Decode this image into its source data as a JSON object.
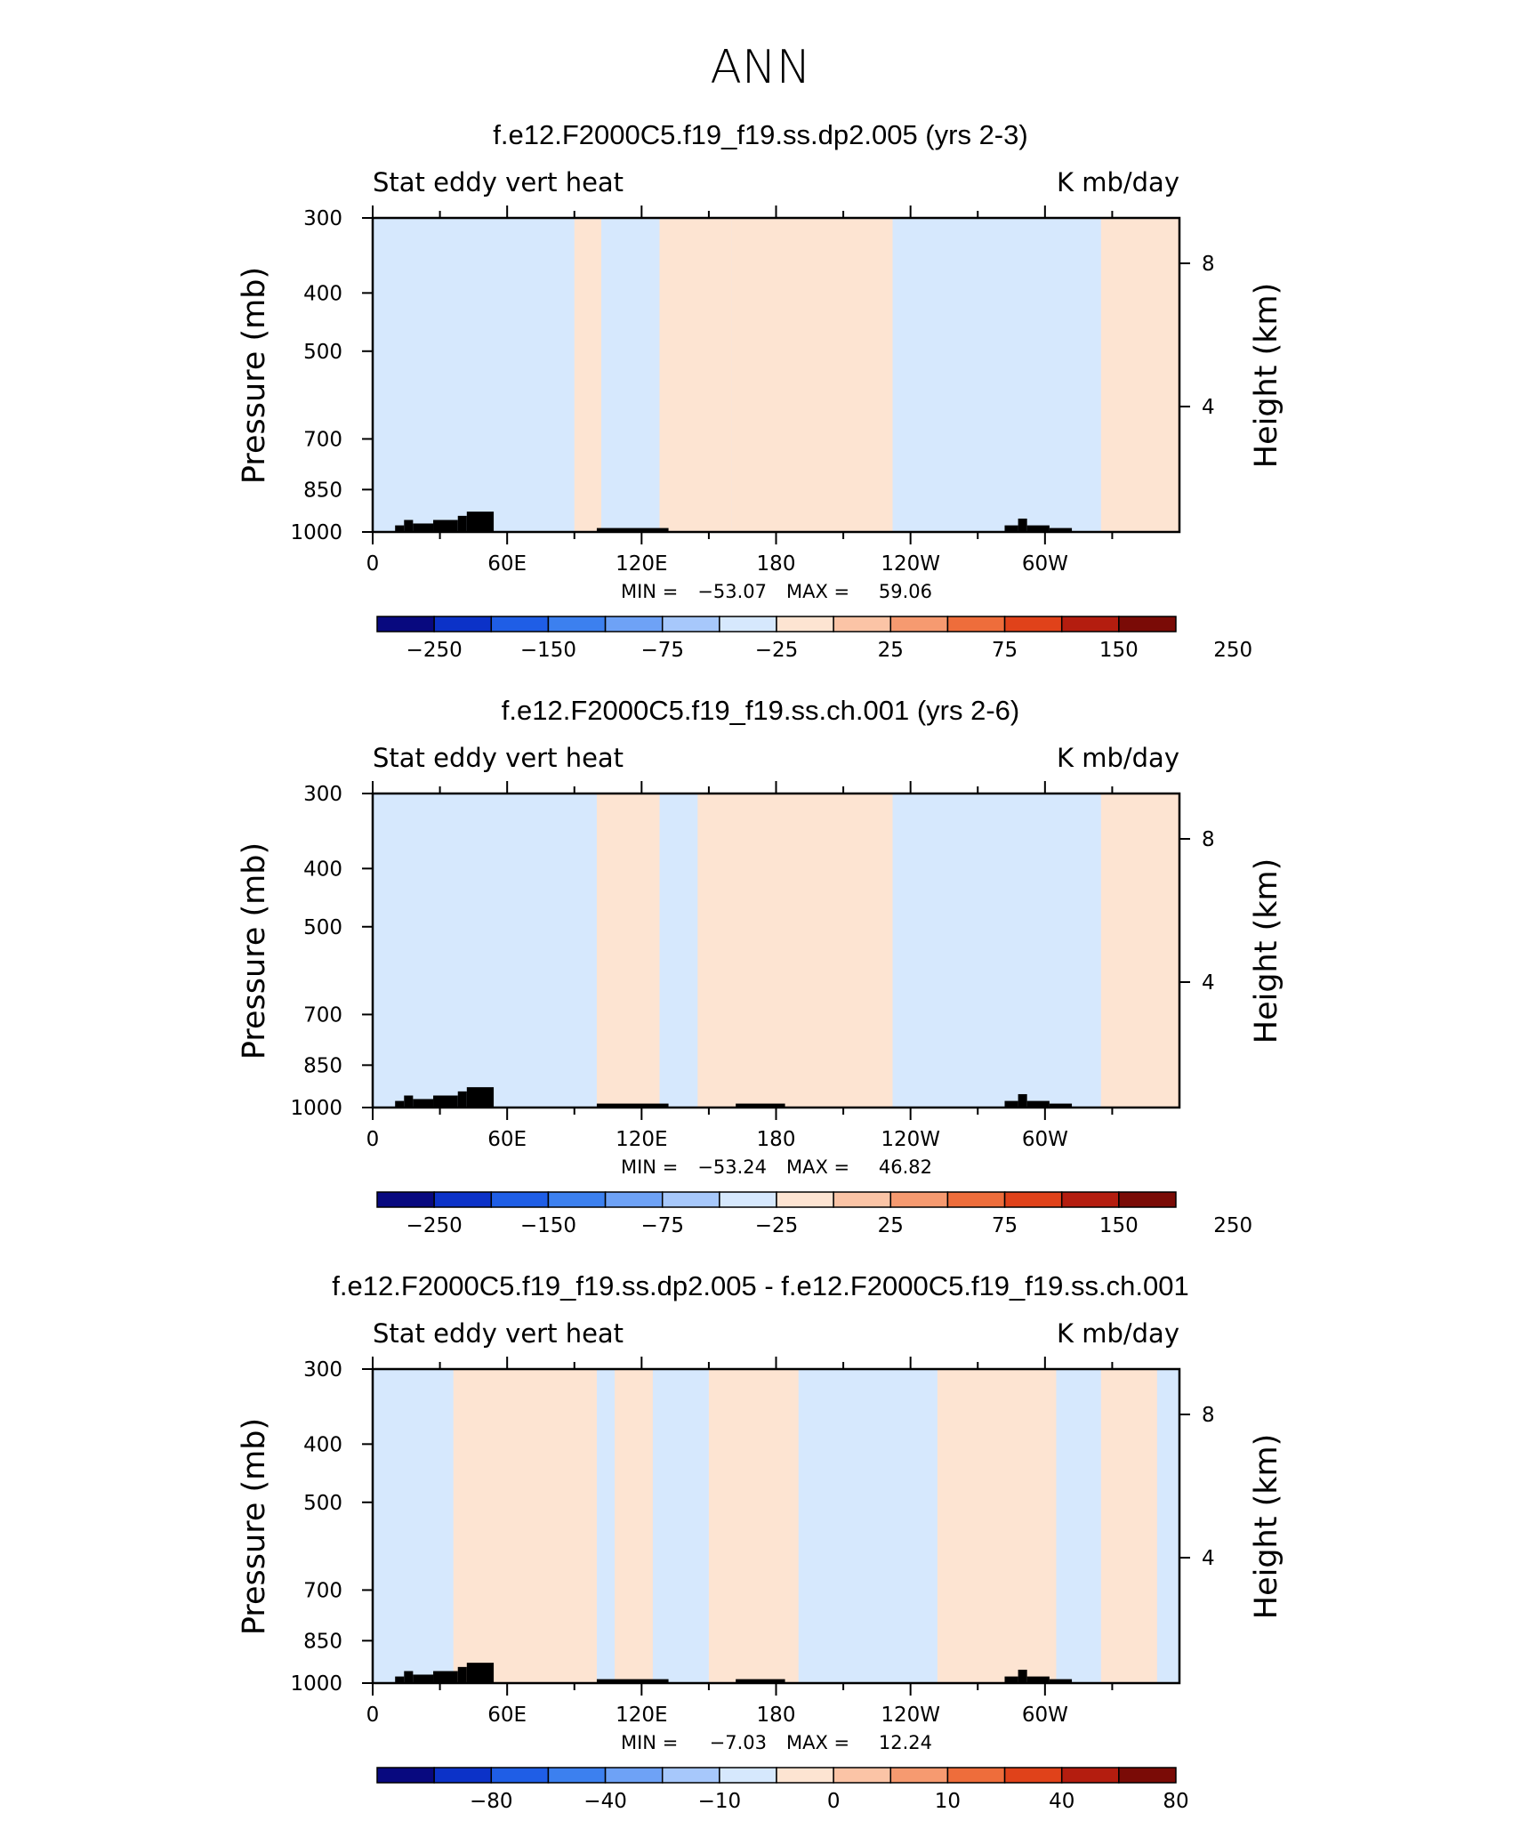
{
  "page_title": "ANN",
  "colors": {
    "land": "#000000",
    "neg1": "#d6e8fd",
    "pos1": "#fde4d2",
    "colorbar": [
      "#08097f",
      "#0c32c8",
      "#1f5ee6",
      "#3c80ef",
      "#6ea2f6",
      "#a7c8fb",
      "#d6e8fd",
      "#fde4d2",
      "#fbc4a6",
      "#f69a70",
      "#ee6d3b",
      "#e0421a",
      "#b41d0f",
      "#7a0b06"
    ]
  },
  "panels": [
    {
      "title": "f.e12.F2000C5.f19_f19.ss.dp2.005 (yrs 2-3)",
      "left_label": "Stat eddy vert heat",
      "right_label": "K mb/day",
      "y_label": "Pressure (mb)",
      "y2_label": "Height (km)",
      "stats": {
        "min_label": "MIN =",
        "min": "−53.07",
        "max_label": "MAX =",
        "max": "59.06"
      },
      "colorbar_labels": [
        "−250",
        "−150",
        "−75",
        "−25",
        "25",
        "75",
        "150",
        "250"
      ]
    },
    {
      "title": "f.e12.F2000C5.f19_f19.ss.ch.001 (yrs 2-6)",
      "left_label": "Stat eddy vert heat",
      "right_label": "K mb/day",
      "y_label": "Pressure (mb)",
      "y2_label": "Height (km)",
      "stats": {
        "min_label": "MIN =",
        "min": "−53.24",
        "max_label": "MAX =",
        "max": "46.82"
      },
      "colorbar_labels": [
        "−250",
        "−150",
        "−75",
        "−25",
        "25",
        "75",
        "150",
        "250"
      ]
    },
    {
      "title": "f.e12.F2000C5.f19_f19.ss.dp2.005 - f.e12.F2000C5.f19_f19.ss.ch.001",
      "left_label": "Stat eddy vert heat",
      "right_label": "K mb/day",
      "y_label": "Pressure (mb)",
      "y2_label": "Height (km)",
      "stats": {
        "min_label": "MIN =",
        "min": "−7.03",
        "max_label": "MAX =",
        "max": "12.24"
      },
      "colorbar_labels": [
        "−80",
        "−40",
        "−10",
        "0",
        "10",
        "40",
        "80"
      ]
    }
  ],
  "chart_data": [
    {
      "type": "heatmap",
      "title": "f.e12.F2000C5.f19_f19.ss.dp2.005 (yrs 2-3)",
      "xlabel": "",
      "ylabel": "Pressure (mb)",
      "y2label": "Height (km)",
      "x_ticks": [
        "0",
        "60E",
        "120E",
        "180",
        "120W",
        "60W"
      ],
      "x_tick_values": [
        0,
        60,
        120,
        180,
        240,
        300
      ],
      "xlim": [
        0,
        360
      ],
      "y_ticks": [
        300,
        400,
        500,
        700,
        850,
        1000
      ],
      "ylim": [
        1000,
        300
      ],
      "y_scale": "log",
      "y2_ticks": [
        8,
        4
      ],
      "colorbar_levels": [
        -250,
        -200,
        -150,
        -100,
        -75,
        -50,
        -25,
        0,
        25,
        50,
        75,
        100,
        150,
        200,
        250
      ],
      "colorbar_labels": [
        "−250",
        "−150",
        "−75",
        "−25",
        "25",
        "75",
        "150",
        "250"
      ],
      "min": -53.07,
      "max": 59.06,
      "sign_pattern": [
        [
          0,
          12,
          "neg"
        ],
        [
          12,
          25,
          "neg"
        ],
        [
          25,
          48,
          "neg"
        ],
        [
          48,
          55,
          "neg"
        ],
        [
          55,
          90,
          "neg"
        ],
        [
          90,
          102,
          "pos"
        ],
        [
          102,
          128,
          "neg"
        ],
        [
          128,
          160,
          "pos"
        ],
        [
          160,
          232,
          "pos"
        ],
        [
          232,
          280,
          "neg"
        ],
        [
          280,
          325,
          "neg"
        ],
        [
          325,
          360,
          "pos"
        ]
      ]
    },
    {
      "type": "heatmap",
      "title": "f.e12.F2000C5.f19_f19.ss.ch.001 (yrs 2-6)",
      "xlabel": "",
      "ylabel": "Pressure (mb)",
      "y2label": "Height (km)",
      "x_ticks": [
        "0",
        "60E",
        "120E",
        "180",
        "120W",
        "60W"
      ],
      "x_tick_values": [
        0,
        60,
        120,
        180,
        240,
        300
      ],
      "xlim": [
        0,
        360
      ],
      "y_ticks": [
        300,
        400,
        500,
        700,
        850,
        1000
      ],
      "ylim": [
        1000,
        300
      ],
      "y_scale": "log",
      "y2_ticks": [
        8,
        4
      ],
      "colorbar_levels": [
        -250,
        -200,
        -150,
        -100,
        -75,
        -50,
        -25,
        0,
        25,
        50,
        75,
        100,
        150,
        200,
        250
      ],
      "colorbar_labels": [
        "−250",
        "−150",
        "−75",
        "−25",
        "25",
        "75",
        "150",
        "250"
      ],
      "min": -53.24,
      "max": 46.82,
      "sign_pattern": [
        [
          0,
          12,
          "neg"
        ],
        [
          12,
          48,
          "neg"
        ],
        [
          48,
          55,
          "neg"
        ],
        [
          55,
          100,
          "neg"
        ],
        [
          100,
          128,
          "pos"
        ],
        [
          128,
          145,
          "neg"
        ],
        [
          145,
          232,
          "pos"
        ],
        [
          232,
          280,
          "neg"
        ],
        [
          280,
          325,
          "neg"
        ],
        [
          325,
          360,
          "pos"
        ]
      ]
    },
    {
      "type": "heatmap",
      "title": "f.e12.F2000C5.f19_f19.ss.dp2.005 - f.e12.F2000C5.f19_f19.ss.ch.001",
      "xlabel": "",
      "ylabel": "Pressure (mb)",
      "y2label": "Height (km)",
      "x_ticks": [
        "0",
        "60E",
        "120E",
        "180",
        "120W",
        "60W"
      ],
      "x_tick_values": [
        0,
        60,
        120,
        180,
        240,
        300
      ],
      "xlim": [
        0,
        360
      ],
      "y_ticks": [
        300,
        400,
        500,
        700,
        850,
        1000
      ],
      "ylim": [
        1000,
        300
      ],
      "y_scale": "log",
      "y2_ticks": [
        8,
        4
      ],
      "colorbar_levels": [
        -100,
        -80,
        -60,
        -40,
        -20,
        -10,
        -5,
        0,
        5,
        10,
        20,
        40,
        60,
        80,
        100
      ],
      "colorbar_labels": [
        "−80",
        "−40",
        "−10",
        "0",
        "10",
        "40",
        "80"
      ],
      "min": -7.03,
      "max": 12.24,
      "sign_pattern": [
        [
          0,
          36,
          "neg"
        ],
        [
          36,
          100,
          "pos"
        ],
        [
          100,
          108,
          "neg"
        ],
        [
          108,
          125,
          "pos"
        ],
        [
          125,
          150,
          "neg"
        ],
        [
          150,
          190,
          "pos"
        ],
        [
          190,
          252,
          "neg"
        ],
        [
          252,
          305,
          "pos"
        ],
        [
          305,
          325,
          "neg"
        ],
        [
          325,
          350,
          "pos"
        ],
        [
          350,
          360,
          "neg"
        ]
      ]
    }
  ]
}
